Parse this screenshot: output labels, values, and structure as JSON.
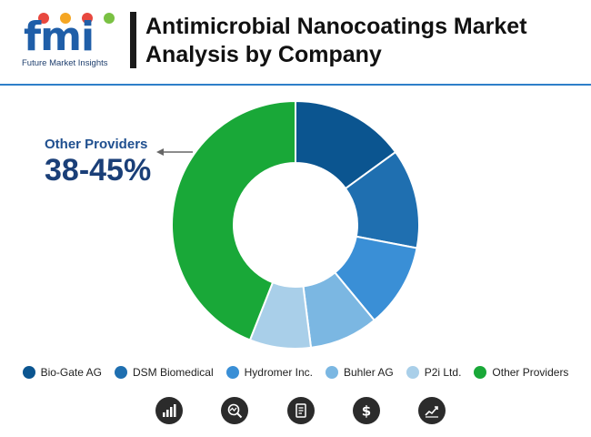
{
  "brand": {
    "logo_text": "fmi",
    "tagline": "Future Market Insights",
    "dot_colors": [
      "#e8483f",
      "#f5a623",
      "#e8483f",
      "#7ac143"
    ]
  },
  "header": {
    "title_line1": "Antimicrobial Nanocoatings Market",
    "title_line2": "Analysis by Company"
  },
  "callout": {
    "label": "Other Providers",
    "value": "38-45%"
  },
  "chart_data": {
    "type": "pie",
    "donut": true,
    "title": "Antimicrobial Nanocoatings Market Analysis by Company",
    "legend_position": "bottom",
    "categories": [
      "Bio-Gate AG",
      "DSM Biomedical",
      "Hydromer Inc.",
      "Buhler AG",
      "P2i Ltd.",
      "Other Providers"
    ],
    "values": [
      15,
      13,
      11,
      9,
      8,
      44
    ],
    "colors": [
      "#0b5590",
      "#1f6fb0",
      "#3a8fd6",
      "#7bb7e2",
      "#a9cfe9",
      "#19a838"
    ]
  },
  "footer_icons": [
    "bar-chart-icon",
    "magnifier-chart-icon",
    "document-icon",
    "dollar-icon",
    "trend-line-icon"
  ]
}
